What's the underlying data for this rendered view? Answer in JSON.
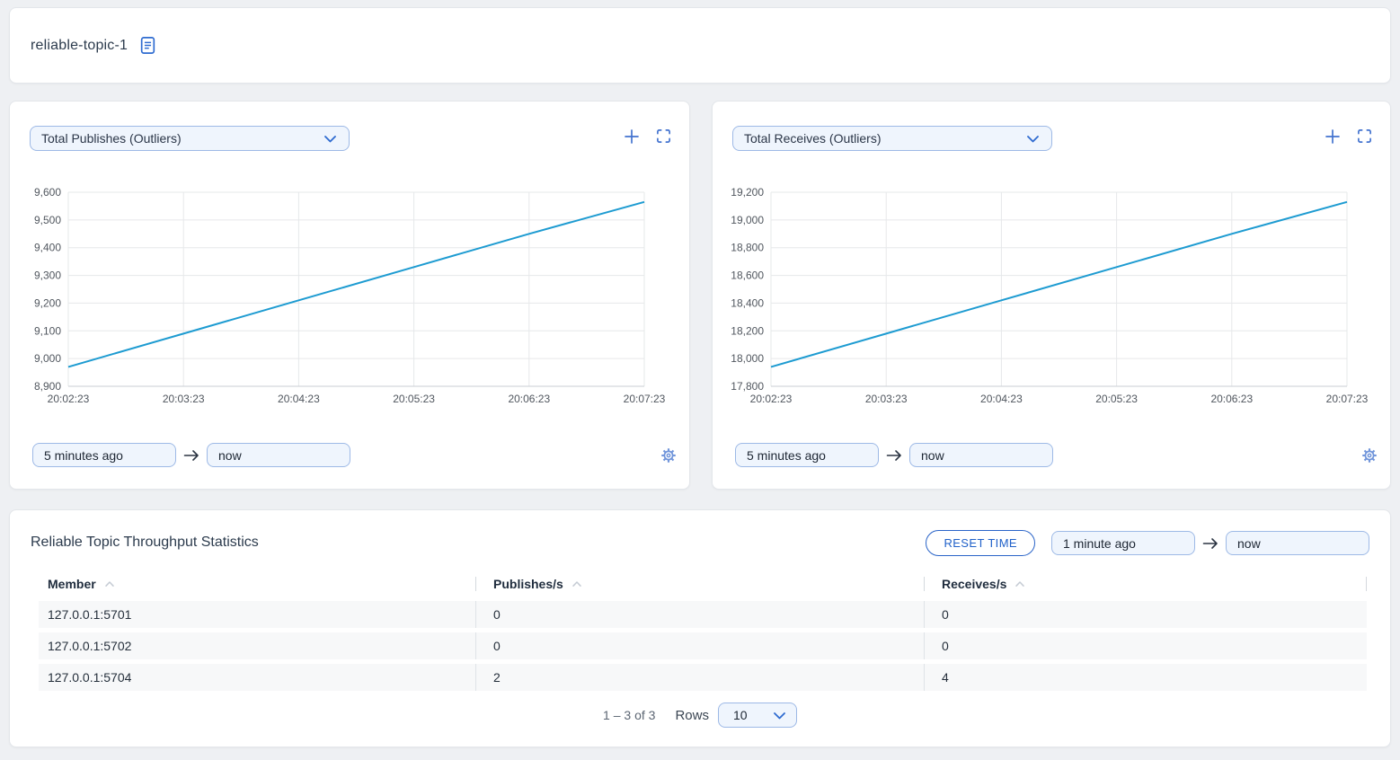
{
  "topic_header": {
    "title": "reliable-topic-1"
  },
  "chart_cards": [
    {
      "metric_select": "Total Publishes (Outliers)",
      "from": "5 minutes ago",
      "to": "now"
    },
    {
      "metric_select": "Total Receives (Outliers)",
      "from": "5 minutes ago",
      "to": "now"
    }
  ],
  "chart_data": [
    {
      "type": "line",
      "title": "Total Publishes (Outliers)",
      "x": [
        "20:02:23",
        "20:03:23",
        "20:04:23",
        "20:05:23",
        "20:06:23",
        "20:07:23"
      ],
      "values": [
        8970,
        9090,
        9210,
        9330,
        9450,
        9565
      ],
      "ylim": [
        8900,
        9600
      ],
      "ytick_step": 100,
      "grid": true,
      "legend": "none",
      "line_color": "#1d9bd1"
    },
    {
      "type": "line",
      "title": "Total Receives (Outliers)",
      "x": [
        "20:02:23",
        "20:03:23",
        "20:04:23",
        "20:05:23",
        "20:06:23",
        "20:07:23"
      ],
      "values": [
        17940,
        18180,
        18420,
        18660,
        18900,
        19130
      ],
      "ylim": [
        17800,
        19200
      ],
      "ytick_step": 200,
      "grid": true,
      "legend": "none",
      "line_color": "#1d9bd1"
    }
  ],
  "table": {
    "title": "Reliable Topic Throughput Statistics",
    "reset_button": "RESET TIME",
    "from": "1 minute ago",
    "to": "now",
    "columns": [
      "Member",
      "Publishes/s",
      "Receives/s"
    ],
    "rows": [
      {
        "member": "127.0.0.1:5701",
        "publishes": "0",
        "receives": "0"
      },
      {
        "member": "127.0.0.1:5702",
        "publishes": "0",
        "receives": "0"
      },
      {
        "member": "127.0.0.1:5704",
        "publishes": "2",
        "receives": "4"
      }
    ],
    "pagination": {
      "range": "1 – 3 of 3",
      "rows_label": "Rows",
      "rows_per_page": "10"
    }
  },
  "colors": {
    "accent_blue": "#2e6bd0",
    "line_blue": "#1d9bd1",
    "input_bg": "#eff5fd",
    "input_border": "#9db9e6",
    "grid": "#e6e8ea",
    "page_bg": "#eef0f3"
  }
}
